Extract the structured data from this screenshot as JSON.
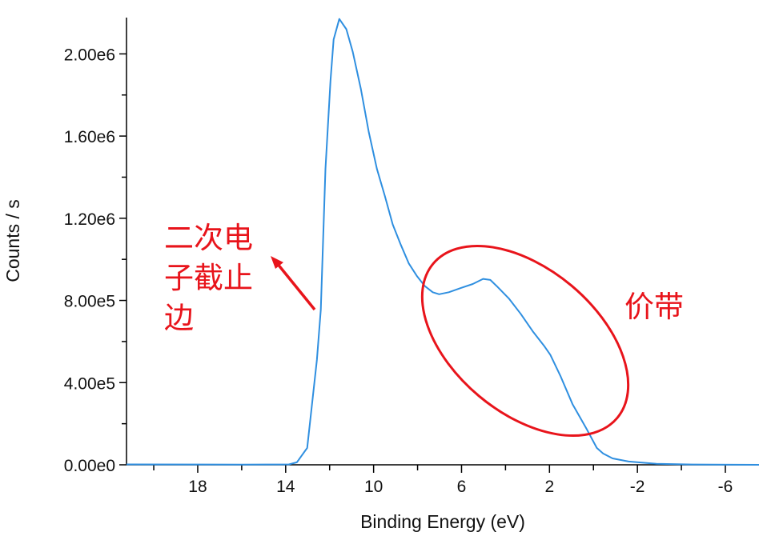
{
  "chart_data": {
    "type": "line",
    "title": "",
    "xlabel": "Binding Energy (eV)",
    "ylabel": "Counts / s",
    "xlim": [
      21.24,
      -7.53
    ],
    "ylim": [
      0,
      2200000
    ],
    "x_reversed": true,
    "grid": false,
    "x_ticks": [
      18,
      14,
      10,
      6,
      2,
      -2,
      -6
    ],
    "x_tick_labels": [
      "18",
      "14",
      "10",
      "6",
      "2",
      "-2",
      "-6"
    ],
    "x_minor_ticks": [
      20,
      16,
      12,
      8,
      4,
      0,
      -4
    ],
    "y_ticks": [
      0,
      400000,
      800000,
      1200000,
      1600000,
      2000000
    ],
    "y_tick_labels": [
      "0.00e0",
      "4.00e5",
      "8.00e5",
      "1.20e6",
      "1.60e6",
      "2.00e6"
    ],
    "y_minor_ticks": [
      200000,
      600000,
      1000000,
      1400000,
      1800000
    ],
    "series": [
      {
        "name": "spectrum",
        "color": "#2f8fe0",
        "x": [
          21.24,
          16,
          13.85,
          13.49,
          13.02,
          12.58,
          12.4,
          12.19,
          11.96,
          11.82,
          11.56,
          11.24,
          10.95,
          10.58,
          10.22,
          9.85,
          9.49,
          9.13,
          8.76,
          8.4,
          8.04,
          7.67,
          7.31,
          7.02,
          6.58,
          6.04,
          5.49,
          5.02,
          4.69,
          4.4,
          3.85,
          3.31,
          2.76,
          2.22,
          1.96,
          1.49,
          0.95,
          0.29,
          -0.15,
          -0.44,
          -0.87,
          -1.6,
          -2.87,
          -4.5,
          -7.53
        ],
        "y": [
          2000,
          1000,
          2000,
          12000,
          82000,
          510000,
          755000,
          1440000,
          1870000,
          2070000,
          2170000,
          2120000,
          2010000,
          1830000,
          1620000,
          1440000,
          1310000,
          1170000,
          1070000,
          980000,
          920000,
          870000,
          840000,
          830000,
          840000,
          860000,
          880000,
          905000,
          900000,
          870000,
          810000,
          735000,
          650000,
          575000,
          535000,
          430000,
          295000,
          170000,
          82000,
          55000,
          31000,
          16000,
          5000,
          1500,
          0
        ]
      }
    ],
    "annotations": {
      "secondary_cutoff_lines": [
        "二次电",
        "子截止",
        "边"
      ],
      "valence_band": "价带",
      "annotation_color": "#e8141b"
    }
  }
}
